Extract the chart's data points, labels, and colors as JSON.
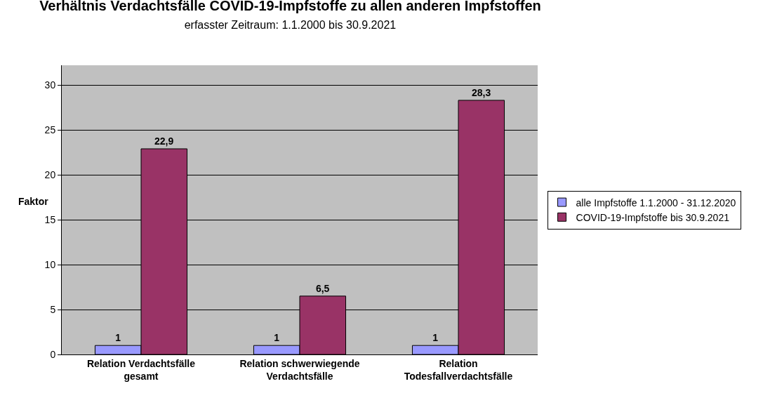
{
  "chart_data": {
    "type": "bar",
    "title": "Verhältnis Verdachtsfälle COVID-19-Impfstoffe zu allen anderen Impfstoffen",
    "subtitle": "erfasster Zeitraum: 1.1.2000 bis 30.9.2021",
    "ylabel": "Faktor",
    "categories": [
      "Relation Verdachtsfälle gesamt",
      "Relation schwerwiegende Verdachtsfälle",
      "Relation Todesfallverdachtsfälle"
    ],
    "series": [
      {
        "name": "alle Impfstoffe 1.1.2000 - 31.12.2020",
        "color": "#9999ff",
        "values": [
          1,
          1,
          1
        ]
      },
      {
        "name": "COVID-19-Impfstoffe bis 30.9.2021",
        "color": "#993366",
        "values": [
          22.9,
          6.5,
          28.3
        ]
      }
    ],
    "value_labels": [
      [
        "1",
        "1",
        "1"
      ],
      [
        "22,9",
        "6,5",
        "28,3"
      ]
    ],
    "ylim": [
      0,
      32.2
    ],
    "yticks": [
      0,
      5,
      10,
      15,
      20,
      25,
      30
    ],
    "grid": "y",
    "legend": "right"
  }
}
